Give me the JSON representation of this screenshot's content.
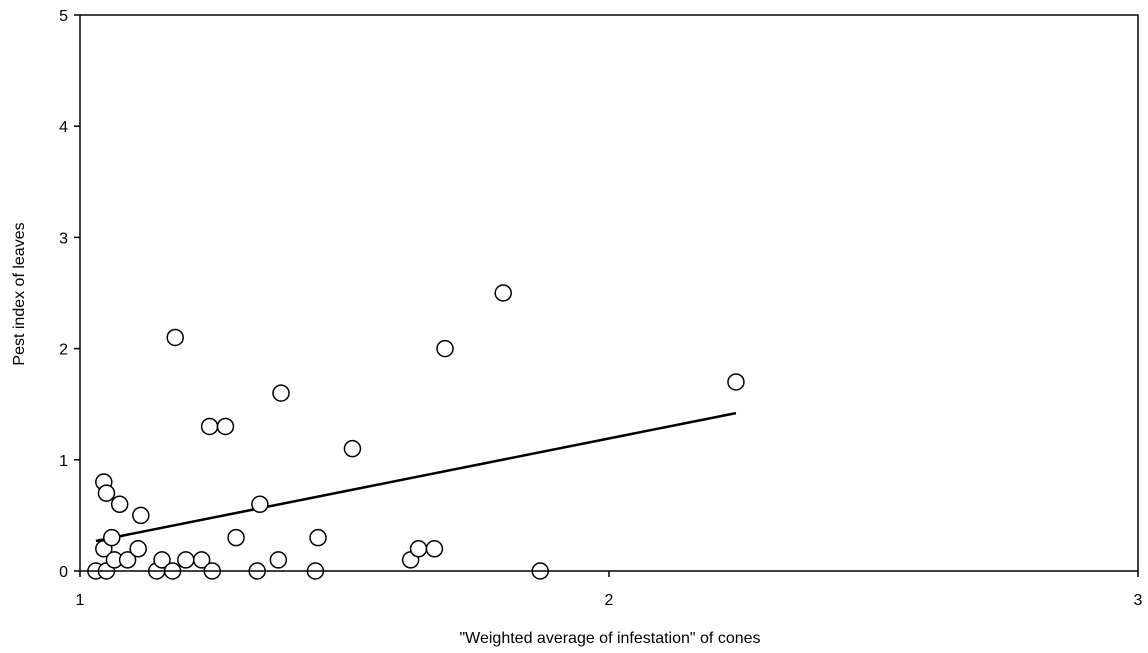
{
  "chart_data": {
    "type": "scatter",
    "xlabel": "\"Weighted average of infestation\" of cones",
    "ylabel": "Pest index of leaves",
    "xlim": [
      1,
      3
    ],
    "ylim": [
      0,
      5
    ],
    "x_ticks": [
      1,
      2,
      3
    ],
    "y_ticks": [
      0,
      1,
      2,
      3,
      4,
      5
    ],
    "x_tick_labels": [
      "1",
      "2",
      "3"
    ],
    "y_tick_labels": [
      "0",
      "1",
      "2",
      "3",
      "4",
      "5"
    ],
    "grid": false,
    "legend": "none",
    "series": [
      {
        "marker": "open-circle",
        "points": [
          [
            1.03,
            0.0
          ],
          [
            1.045,
            0.8
          ],
          [
            1.045,
            0.2
          ],
          [
            1.05,
            0.7
          ],
          [
            1.05,
            0.0
          ],
          [
            1.06,
            0.3
          ],
          [
            1.065,
            0.1
          ],
          [
            1.075,
            0.6
          ],
          [
            1.09,
            0.1
          ],
          [
            1.11,
            0.2
          ],
          [
            1.115,
            0.5
          ],
          [
            1.145,
            0.0
          ],
          [
            1.155,
            0.1
          ],
          [
            1.175,
            0.0
          ],
          [
            1.18,
            2.1
          ],
          [
            1.2,
            0.1
          ],
          [
            1.23,
            0.1
          ],
          [
            1.245,
            1.3
          ],
          [
            1.25,
            0.0
          ],
          [
            1.275,
            1.3
          ],
          [
            1.295,
            0.3
          ],
          [
            1.335,
            0.0
          ],
          [
            1.34,
            0.6
          ],
          [
            1.375,
            0.1
          ],
          [
            1.38,
            1.6
          ],
          [
            1.445,
            0.0
          ],
          [
            1.45,
            0.3
          ],
          [
            1.515,
            1.1
          ],
          [
            1.625,
            0.1
          ],
          [
            1.64,
            0.2
          ],
          [
            1.67,
            0.2
          ],
          [
            1.69,
            2.0
          ],
          [
            1.8,
            2.5
          ],
          [
            1.87,
            0.0
          ],
          [
            2.24,
            1.7
          ]
        ]
      }
    ],
    "trendline": {
      "type": "linear",
      "x": [
        1.03,
        2.24
      ],
      "y": [
        0.27,
        1.42
      ]
    }
  }
}
